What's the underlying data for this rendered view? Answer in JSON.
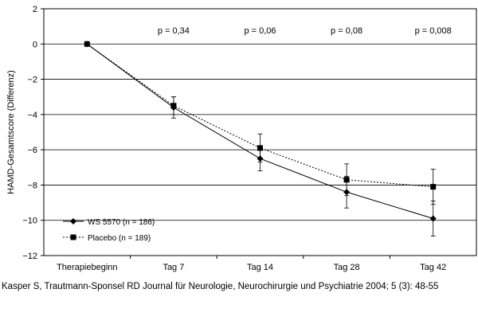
{
  "chart_data": {
    "type": "line",
    "categories": [
      "Therapiebeginn",
      "Tag 7",
      "Tag 14",
      "Tag 28",
      "Tag 42"
    ],
    "ylabel": "HAMD-Gesamtscore (Differenz)",
    "ylim": [
      -12,
      2
    ],
    "yticks": [
      2,
      0,
      -2,
      -4,
      -6,
      -8,
      -10,
      -12
    ],
    "ytick_labels": [
      "2",
      "0",
      "−2",
      "−4",
      "−6",
      "−8",
      "−10",
      "−12"
    ],
    "grid": true,
    "legend_position": "bottom-left",
    "series": [
      {
        "name": "WS 5570 (n = 186)",
        "marker": "diamond",
        "line_style": "solid",
        "values": [
          0,
          -3.6,
          -6.5,
          -8.4,
          -9.9
        ],
        "error": [
          0,
          0.6,
          0.7,
          0.9,
          1.0
        ]
      },
      {
        "name": "Placebo (n = 189)",
        "marker": "square",
        "line_style": "dotted",
        "values": [
          0,
          -3.5,
          -5.9,
          -7.7,
          -8.1
        ],
        "error": [
          0,
          0.5,
          0.8,
          0.9,
          1.0
        ]
      }
    ],
    "annotations": [
      {
        "category": "Tag 7",
        "text": "p = 0,34"
      },
      {
        "category": "Tag 14",
        "text": "p = 0,06"
      },
      {
        "category": "Tag 28",
        "text": "p = 0,08"
      },
      {
        "category": "Tag 42",
        "text": "p = 0,008"
      }
    ]
  },
  "caption": "Kasper S, Trautmann-Sponsel RD Journal für Neurologie, Neurochirurgie und Psychiatrie 2004; 5 (3): 48-55"
}
